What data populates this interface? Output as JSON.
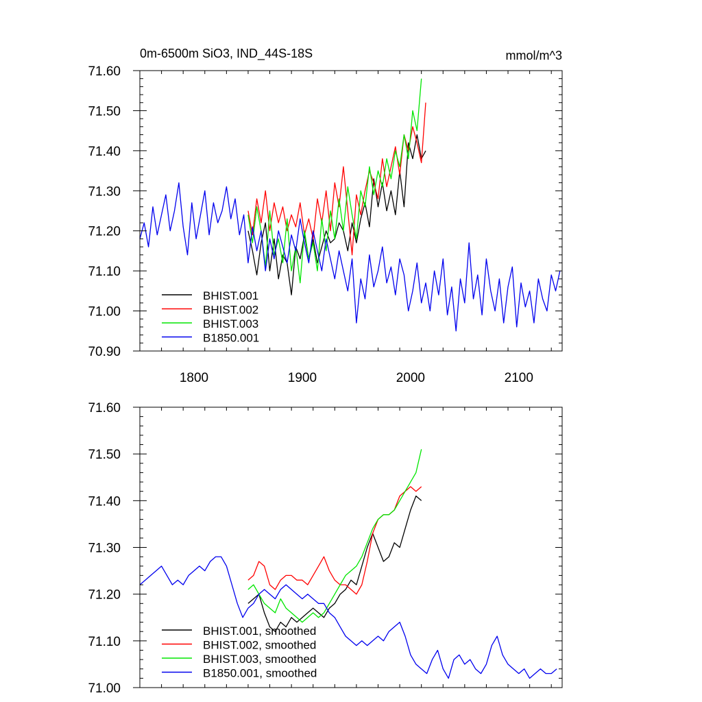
{
  "chart_data": [
    {
      "type": "line",
      "title": "0m-6500m SiO3, IND_44S-18S",
      "units": "mmol/m^3",
      "xlim": [
        1750,
        2140
      ],
      "ylim": [
        70.9,
        71.6
      ],
      "x_ticks": [
        "1800",
        "1900",
        "2000",
        "2100"
      ],
      "y_ticks": [
        "70.90",
        "71.00",
        "71.10",
        "71.20",
        "71.30",
        "71.40",
        "71.50",
        "71.60"
      ],
      "legend_position": "bottom-left",
      "series": [
        {
          "name": "BHIST.001",
          "color": "#000000",
          "x": [
            1850,
            1854,
            1858,
            1862,
            1866,
            1870,
            1874,
            1878,
            1882,
            1886,
            1890,
            1894,
            1898,
            1902,
            1906,
            1910,
            1914,
            1918,
            1922,
            1926,
            1930,
            1934,
            1938,
            1942,
            1946,
            1950,
            1954,
            1958,
            1962,
            1966,
            1970,
            1974,
            1978,
            1982,
            1986,
            1990,
            1994,
            1998,
            2002,
            2006,
            2010,
            2014
          ],
          "y": [
            71.2,
            71.15,
            71.09,
            71.17,
            71.22,
            71.1,
            71.18,
            71.08,
            71.14,
            71.12,
            71.04,
            71.16,
            71.13,
            71.19,
            71.13,
            71.18,
            71.12,
            71.16,
            71.2,
            71.17,
            71.18,
            71.22,
            71.2,
            71.15,
            71.22,
            71.17,
            71.23,
            71.27,
            71.21,
            71.33,
            71.26,
            71.32,
            71.25,
            71.3,
            71.24,
            71.35,
            71.26,
            71.42,
            71.38,
            71.44,
            71.38,
            71.4
          ]
        },
        {
          "name": "BHIST.002",
          "color": "#ff0000",
          "x": [
            1850,
            1854,
            1858,
            1862,
            1866,
            1870,
            1874,
            1878,
            1882,
            1886,
            1890,
            1894,
            1898,
            1902,
            1906,
            1910,
            1914,
            1918,
            1922,
            1926,
            1930,
            1934,
            1938,
            1942,
            1946,
            1950,
            1954,
            1958,
            1962,
            1966,
            1970,
            1974,
            1978,
            1982,
            1986,
            1990,
            1994,
            1998,
            2002,
            2006,
            2010,
            2014
          ],
          "y": [
            71.25,
            71.19,
            71.28,
            71.22,
            71.3,
            71.2,
            71.27,
            71.22,
            71.26,
            71.2,
            71.24,
            71.21,
            71.27,
            71.19,
            71.23,
            71.18,
            71.28,
            71.22,
            71.3,
            71.2,
            71.32,
            71.26,
            71.36,
            71.25,
            71.14,
            71.29,
            71.24,
            71.3,
            71.35,
            71.32,
            71.28,
            71.38,
            71.31,
            71.36,
            71.41,
            71.34,
            71.44,
            71.4,
            71.46,
            71.42,
            71.37,
            71.52
          ]
        },
        {
          "name": "BHIST.003",
          "color": "#00e600",
          "x": [
            1850,
            1854,
            1858,
            1862,
            1866,
            1870,
            1874,
            1878,
            1882,
            1886,
            1890,
            1894,
            1898,
            1902,
            1906,
            1910,
            1914,
            1918,
            1922,
            1926,
            1930,
            1934,
            1938,
            1942,
            1946,
            1950,
            1954,
            1958,
            1962,
            1966,
            1970,
            1974,
            1978,
            1982,
            1986,
            1990,
            1994,
            1998,
            2002,
            2006,
            2010
          ],
          "y": [
            71.24,
            71.17,
            71.26,
            71.2,
            71.11,
            71.25,
            71.14,
            71.18,
            71.12,
            71.23,
            71.1,
            71.16,
            71.07,
            71.2,
            71.13,
            71.17,
            71.1,
            71.23,
            71.15,
            71.25,
            71.18,
            71.28,
            71.2,
            71.31,
            71.24,
            71.18,
            71.3,
            71.26,
            71.36,
            71.29,
            71.35,
            71.31,
            71.38,
            71.33,
            71.4,
            71.36,
            71.44,
            71.38,
            71.5,
            71.45,
            71.58
          ]
        },
        {
          "name": "B1850.001",
          "color": "#0000ee",
          "x": [
            1750,
            1754,
            1758,
            1762,
            1766,
            1770,
            1774,
            1778,
            1782,
            1786,
            1790,
            1794,
            1798,
            1802,
            1806,
            1810,
            1814,
            1818,
            1822,
            1826,
            1830,
            1834,
            1838,
            1842,
            1846,
            1850,
            1854,
            1858,
            1862,
            1866,
            1870,
            1874,
            1878,
            1882,
            1886,
            1890,
            1894,
            1898,
            1902,
            1906,
            1910,
            1914,
            1918,
            1922,
            1926,
            1930,
            1934,
            1938,
            1942,
            1946,
            1950,
            1954,
            1958,
            1962,
            1966,
            1970,
            1974,
            1978,
            1982,
            1986,
            1990,
            1994,
            1998,
            2002,
            2006,
            2010,
            2014,
            2018,
            2022,
            2026,
            2030,
            2034,
            2038,
            2042,
            2046,
            2050,
            2054,
            2058,
            2062,
            2066,
            2070,
            2074,
            2078,
            2082,
            2086,
            2090,
            2094,
            2098,
            2102,
            2106,
            2110,
            2114,
            2118,
            2122,
            2126,
            2130,
            2134,
            2138
          ],
          "y": [
            71.18,
            71.22,
            71.16,
            71.26,
            71.19,
            71.24,
            71.29,
            71.2,
            71.25,
            71.32,
            71.21,
            71.14,
            71.27,
            71.18,
            71.24,
            71.3,
            71.19,
            71.27,
            71.22,
            71.25,
            71.31,
            71.23,
            71.28,
            71.19,
            71.24,
            71.12,
            71.21,
            71.15,
            71.2,
            71.1,
            71.18,
            71.13,
            71.2,
            71.16,
            71.12,
            71.19,
            71.15,
            71.23,
            71.17,
            71.12,
            71.2,
            71.15,
            71.1,
            71.18,
            71.13,
            71.08,
            71.15,
            71.1,
            71.05,
            71.13,
            70.97,
            71.08,
            71.03,
            71.14,
            71.06,
            71.1,
            71.16,
            71.07,
            71.11,
            71.04,
            71.13,
            71.09,
            71.0,
            71.05,
            71.12,
            71.02,
            71.07,
            71.0,
            71.1,
            71.04,
            71.13,
            70.99,
            71.06,
            70.95,
            71.08,
            71.02,
            71.17,
            71.03,
            71.09,
            70.99,
            71.13,
            71.05,
            71.0,
            71.08,
            70.97,
            71.06,
            71.11,
            70.96,
            71.07,
            71.01,
            71.05,
            70.97,
            71.08,
            71.03,
            71.0,
            71.09,
            71.05,
            71.1
          ]
        }
      ]
    },
    {
      "type": "line",
      "title": "",
      "units": "",
      "xlim": [
        1750,
        2140
      ],
      "ylim": [
        71.0,
        71.6
      ],
      "x_ticks": [],
      "y_ticks": [
        "71.00",
        "71.10",
        "71.20",
        "71.30",
        "71.40",
        "71.50",
        "71.60"
      ],
      "legend_position": "bottom-left",
      "series": [
        {
          "name": "BHIST.001, smoothed",
          "color": "#000000",
          "x": [
            1850,
            1855,
            1860,
            1865,
            1870,
            1875,
            1880,
            1885,
            1890,
            1895,
            1900,
            1905,
            1910,
            1915,
            1920,
            1925,
            1930,
            1935,
            1940,
            1945,
            1950,
            1955,
            1960,
            1965,
            1970,
            1975,
            1980,
            1985,
            1990,
            1995,
            2000,
            2005,
            2010
          ],
          "y": [
            71.18,
            71.19,
            71.2,
            71.16,
            71.13,
            71.12,
            71.14,
            71.13,
            71.15,
            71.14,
            71.15,
            71.16,
            71.17,
            71.16,
            71.15,
            71.17,
            71.18,
            71.2,
            71.21,
            71.23,
            71.22,
            71.26,
            71.3,
            71.33,
            71.3,
            71.27,
            71.28,
            71.31,
            71.3,
            71.34,
            71.38,
            71.41,
            71.4
          ]
        },
        {
          "name": "BHIST.002, smoothed",
          "color": "#ff0000",
          "x": [
            1850,
            1855,
            1860,
            1865,
            1870,
            1875,
            1880,
            1885,
            1890,
            1895,
            1900,
            1905,
            1910,
            1915,
            1920,
            1925,
            1930,
            1935,
            1940,
            1945,
            1950,
            1955,
            1960,
            1965,
            1970,
            1975,
            1980,
            1985,
            1990,
            1995,
            2000,
            2005,
            2010
          ],
          "y": [
            71.23,
            71.24,
            71.27,
            71.26,
            71.22,
            71.21,
            71.23,
            71.24,
            71.24,
            71.23,
            71.23,
            71.22,
            71.24,
            71.26,
            71.28,
            71.25,
            71.23,
            71.22,
            71.22,
            71.21,
            71.2,
            71.22,
            71.27,
            71.33,
            71.36,
            71.37,
            71.37,
            71.38,
            71.41,
            71.42,
            71.43,
            71.42,
            71.43
          ]
        },
        {
          "name": "BHIST.003, smoothed",
          "color": "#00e600",
          "x": [
            1850,
            1855,
            1860,
            1865,
            1870,
            1875,
            1880,
            1885,
            1890,
            1895,
            1900,
            1905,
            1910,
            1915,
            1920,
            1925,
            1930,
            1935,
            1940,
            1945,
            1950,
            1955,
            1960,
            1965,
            1970,
            1975,
            1980,
            1985,
            1990,
            1995,
            2000,
            2005,
            2010
          ],
          "y": [
            71.21,
            71.22,
            71.2,
            71.18,
            71.17,
            71.16,
            71.19,
            71.17,
            71.16,
            71.15,
            71.14,
            71.15,
            71.16,
            71.15,
            71.16,
            71.18,
            71.2,
            71.22,
            71.24,
            71.25,
            71.26,
            71.28,
            71.31,
            71.34,
            71.36,
            71.37,
            71.37,
            71.38,
            71.4,
            71.42,
            71.44,
            71.46,
            71.51
          ]
        },
        {
          "name": "B1850.001, smoothed",
          "color": "#0000ee",
          "x": [
            1750,
            1755,
            1760,
            1765,
            1770,
            1775,
            1780,
            1785,
            1790,
            1795,
            1800,
            1805,
            1810,
            1815,
            1820,
            1825,
            1830,
            1835,
            1840,
            1845,
            1850,
            1855,
            1860,
            1865,
            1870,
            1875,
            1880,
            1885,
            1890,
            1895,
            1900,
            1905,
            1910,
            1915,
            1920,
            1925,
            1930,
            1935,
            1940,
            1945,
            1950,
            1955,
            1960,
            1965,
            1970,
            1975,
            1980,
            1985,
            1990,
            1995,
            2000,
            2005,
            2010,
            2015,
            2020,
            2025,
            2030,
            2035,
            2040,
            2045,
            2050,
            2055,
            2060,
            2065,
            2070,
            2075,
            2080,
            2085,
            2090,
            2095,
            2100,
            2105,
            2110,
            2115,
            2120,
            2125,
            2130,
            2135
          ],
          "y": [
            71.22,
            71.23,
            71.24,
            71.25,
            71.26,
            71.24,
            71.22,
            71.23,
            71.22,
            71.24,
            71.25,
            71.26,
            71.25,
            71.27,
            71.28,
            71.28,
            71.26,
            71.22,
            71.18,
            71.15,
            71.17,
            71.18,
            71.2,
            71.21,
            71.2,
            71.19,
            71.21,
            71.22,
            71.21,
            71.2,
            71.19,
            71.2,
            71.19,
            71.18,
            71.18,
            71.16,
            71.15,
            71.13,
            71.11,
            71.1,
            71.09,
            71.1,
            71.09,
            71.1,
            71.11,
            71.1,
            71.12,
            71.13,
            71.14,
            71.11,
            71.07,
            71.05,
            71.04,
            71.03,
            71.06,
            71.08,
            71.04,
            71.02,
            71.06,
            71.07,
            71.05,
            71.06,
            71.04,
            71.03,
            71.05,
            71.09,
            71.11,
            71.07,
            71.05,
            71.04,
            71.03,
            71.04,
            71.02,
            71.03,
            71.04,
            71.03,
            71.03,
            71.04
          ]
        }
      ]
    }
  ]
}
